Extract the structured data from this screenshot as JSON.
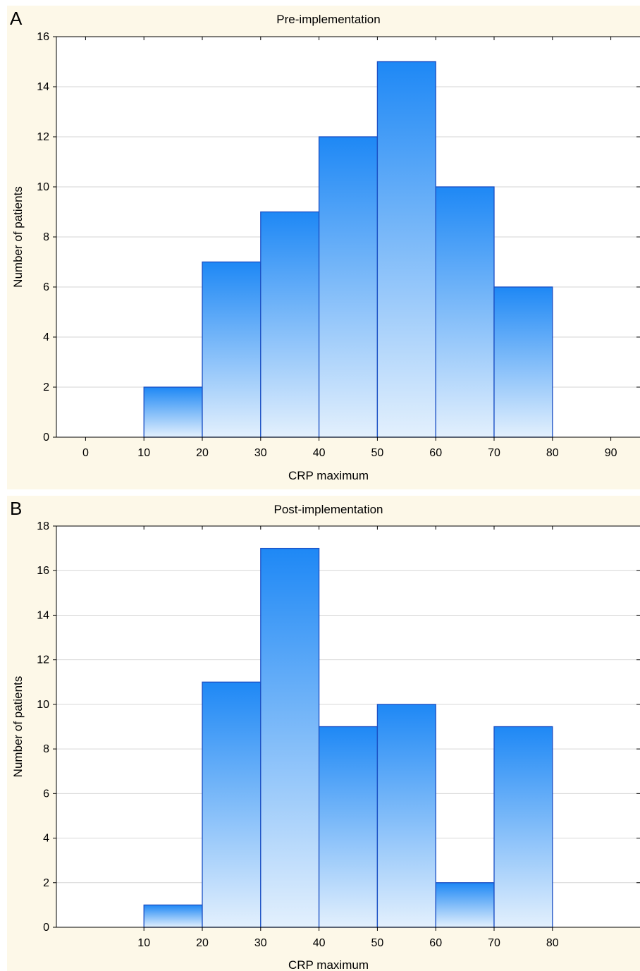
{
  "chart_data": [
    {
      "type": "bar",
      "panel_label": "A",
      "title": "Pre-implementation",
      "xlabel": "CRP maximum",
      "ylabel": "Number of patients",
      "categories": [
        "10-20",
        "20-30",
        "30-40",
        "40-50",
        "50-60",
        "60-70",
        "70-80"
      ],
      "bin_edges": [
        10,
        20,
        30,
        40,
        50,
        60,
        70,
        80
      ],
      "values": [
        2,
        7,
        9,
        12,
        15,
        10,
        6
      ],
      "xlim": [
        -5,
        95
      ],
      "xticks": [
        0,
        10,
        20,
        30,
        40,
        50,
        60,
        70,
        80,
        90
      ],
      "ylim": [
        0,
        16
      ],
      "yticks": [
        0,
        2,
        4,
        6,
        8,
        10,
        12,
        14,
        16
      ],
      "grid": true
    },
    {
      "type": "bar",
      "panel_label": "B",
      "title": "Post-implementation",
      "xlabel": "CRP maximum",
      "ylabel": "Number of patients",
      "categories": [
        "10-20",
        "20-30",
        "30-40",
        "40-50",
        "50-60",
        "60-70",
        "70-80"
      ],
      "bin_edges": [
        10,
        20,
        30,
        40,
        50,
        60,
        70,
        80
      ],
      "values": [
        1,
        11,
        17,
        9,
        10,
        2,
        9
      ],
      "xlim": [
        -5,
        95
      ],
      "xticks": [
        10,
        20,
        30,
        40,
        50,
        60,
        70,
        80
      ],
      "ylim": [
        0,
        18
      ],
      "yticks": [
        0,
        2,
        4,
        6,
        8,
        10,
        12,
        14,
        16,
        18
      ],
      "grid": true
    }
  ],
  "style": {
    "title_band_color": "#fdf8e8",
    "bar_top_color": "#1e88f5",
    "bar_bottom_color": "#e3f0fd",
    "bar_stroke_color": "#1a4fc4",
    "grid_color": "#d6d6d6",
    "axis_color": "#000000"
  }
}
